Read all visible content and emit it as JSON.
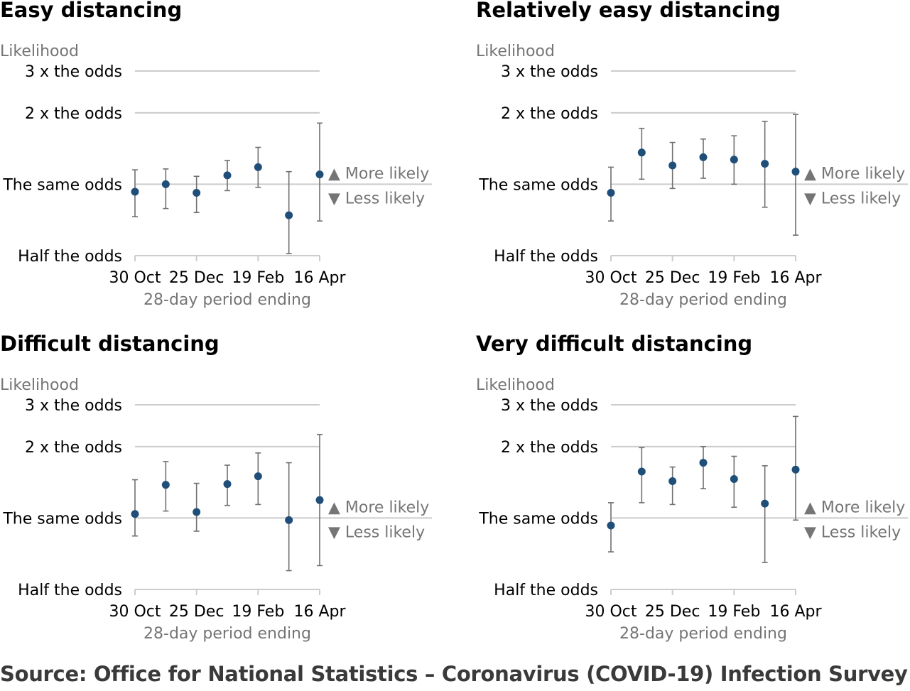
{
  "source": "Source: Office for National Statistics – Coronavirus (COVID-19) Infection Survey",
  "colors": {
    "point": "#1f4e79",
    "error_bar": "#707070",
    "grid": "#cccccc",
    "label_gray": "#757575",
    "text": "#000000"
  },
  "chart_data": [
    {
      "type": "scatter",
      "title": "Easy distancing",
      "ylabel": "Likelihood",
      "xlabel": "28-day period ending",
      "x_ticks": [
        "30 Oct",
        "25 Dec",
        "19 Feb",
        "16 Apr"
      ],
      "y_ticks": [
        "3 x the odds",
        "2 x the odds",
        "The same odds",
        "Half the odds"
      ],
      "y_tick_values": [
        3,
        2,
        1,
        0.5
      ],
      "y_scale": "log",
      "ylim": [
        0.5,
        3
      ],
      "annotations": [
        "▲ More likely",
        "▼ Less likely"
      ],
      "x": [
        "30 Oct",
        "13 Nov",
        "25 Dec",
        "22 Jan",
        "19 Feb",
        "19 Mar",
        "16 Apr"
      ],
      "values": [
        0.93,
        1.0,
        0.92,
        1.09,
        1.18,
        0.74,
        1.1
      ],
      "lower": [
        0.73,
        0.79,
        0.76,
        0.94,
        0.97,
        0.51,
        0.7
      ],
      "upper": [
        1.15,
        1.16,
        1.08,
        1.26,
        1.43,
        1.13,
        1.81
      ]
    },
    {
      "type": "scatter",
      "title": "Relatively easy distancing",
      "ylabel": "Likelihood",
      "xlabel": "28-day period ending",
      "x_ticks": [
        "30 Oct",
        "25 Dec",
        "19 Feb",
        "16 Apr"
      ],
      "y_ticks": [
        "3 x the odds",
        "2 x the odds",
        "The same odds",
        "Half the odds"
      ],
      "y_tick_values": [
        3,
        2,
        1,
        0.5
      ],
      "y_scale": "log",
      "ylim": [
        0.5,
        3
      ],
      "annotations": [
        "▲ More likely",
        "▼ Less likely"
      ],
      "x": [
        "30 Oct",
        "13 Nov",
        "25 Dec",
        "22 Jan",
        "19 Feb",
        "19 Mar",
        "16 Apr"
      ],
      "values": [
        0.92,
        1.36,
        1.2,
        1.3,
        1.27,
        1.22,
        1.13
      ],
      "lower": [
        0.7,
        1.05,
        0.96,
        1.06,
        1.0,
        0.8,
        0.61
      ],
      "upper": [
        1.18,
        1.72,
        1.5,
        1.55,
        1.6,
        1.84,
        1.97
      ]
    },
    {
      "type": "scatter",
      "title": "Difficult distancing",
      "ylabel": "Likelihood",
      "xlabel": "28-day period ending",
      "x_ticks": [
        "30 Oct",
        "25 Dec",
        "19 Feb",
        "16 Apr"
      ],
      "y_ticks": [
        "3 x the odds",
        "2 x the odds",
        "The same odds",
        "Half the odds"
      ],
      "y_tick_values": [
        3,
        2,
        1,
        0.5
      ],
      "y_scale": "log",
      "ylim": [
        0.5,
        3
      ],
      "annotations": [
        "▲ More likely",
        "▼ Less likely"
      ],
      "x": [
        "30 Oct",
        "13 Nov",
        "25 Dec",
        "22 Jan",
        "19 Feb",
        "19 Mar",
        "16 Apr"
      ],
      "values": [
        1.04,
        1.38,
        1.06,
        1.39,
        1.5,
        0.98,
        1.19
      ],
      "lower": [
        0.84,
        1.07,
        0.88,
        1.13,
        1.14,
        0.6,
        0.63
      ],
      "upper": [
        1.45,
        1.73,
        1.4,
        1.67,
        1.88,
        1.71,
        2.25
      ]
    },
    {
      "type": "scatter",
      "title": "Very difficult distancing",
      "ylabel": "Likelihood",
      "xlabel": "28-day period ending",
      "x_ticks": [
        "30 Oct",
        "25 Dec",
        "19 Feb",
        "16 Apr"
      ],
      "y_ticks": [
        "3 x the odds",
        "2 x the odds",
        "The same odds",
        "Half the odds"
      ],
      "y_tick_values": [
        3,
        2,
        1,
        0.5
      ],
      "y_scale": "log",
      "ylim": [
        0.5,
        3
      ],
      "annotations": [
        "▲ More likely",
        "▼ Less likely"
      ],
      "x": [
        "30 Oct",
        "13 Nov",
        "25 Dec",
        "22 Jan",
        "19 Feb",
        "19 Mar",
        "16 Apr"
      ],
      "values": [
        0.93,
        1.57,
        1.43,
        1.71,
        1.46,
        1.15,
        1.6
      ],
      "lower": [
        0.72,
        1.16,
        1.14,
        1.33,
        1.11,
        0.65,
        0.98
      ],
      "upper": [
        1.16,
        1.98,
        1.64,
        2.0,
        1.82,
        1.66,
        2.68
      ]
    }
  ]
}
